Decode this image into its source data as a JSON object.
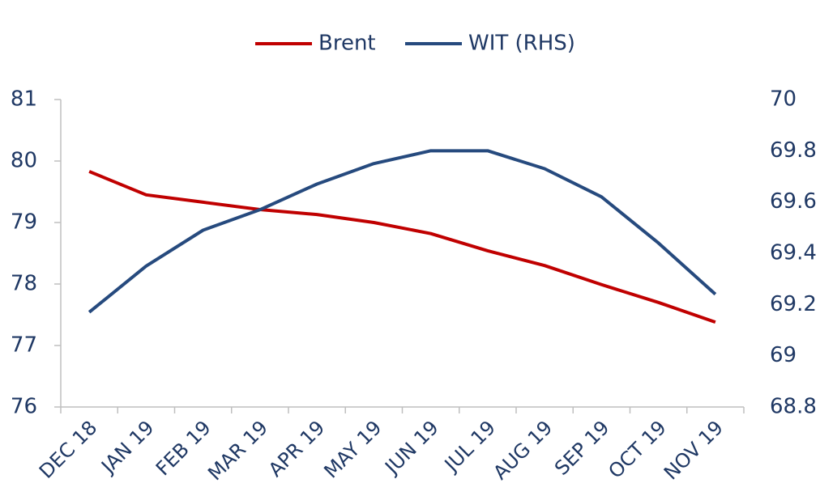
{
  "chart_data": {
    "type": "line",
    "categories": [
      "DEC 18",
      "JAN 19",
      "FEB 19",
      "MAR 19",
      "APR 19",
      "MAY 19",
      "JUN 19",
      "JUL 19",
      "AUG 19",
      "SEP 19",
      "OCT 19",
      "NOV 19"
    ],
    "series": [
      {
        "name": "Brent",
        "color": "#c00000",
        "values": [
          79.83,
          79.45,
          79.33,
          79.21,
          79.13,
          79.0,
          78.82,
          78.54,
          78.3,
          77.99,
          77.7,
          77.38
        ]
      },
      {
        "name": "WIT (RHS)",
        "color": "#264a7e",
        "axis": "y2",
        "values": [
          69.17,
          69.35,
          69.49,
          69.57,
          69.67,
          69.75,
          69.8,
          69.8,
          69.73,
          69.62,
          69.44,
          69.24
        ]
      }
    ],
    "ylim": [
      76,
      81
    ],
    "yticks": [
      76,
      77,
      78,
      79,
      80,
      81
    ],
    "y2lim": [
      68.8,
      70
    ],
    "y2ticks": [
      68.8,
      69,
      69.2,
      69.4,
      69.6,
      69.8,
      70
    ],
    "legend": "top"
  }
}
